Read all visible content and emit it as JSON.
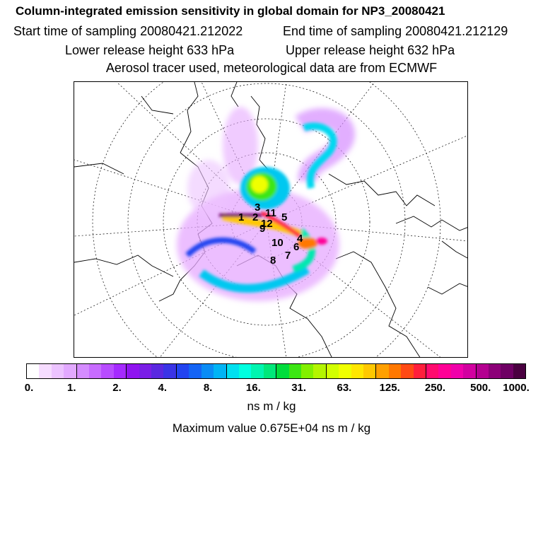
{
  "title": "Column-integrated emission sensitivity in global domain for NP3_20080421",
  "start_time": "Start time of sampling 20080421.212022",
  "end_time": "End time of sampling 20080421.212129",
  "lower_release": "Lower release height  633 hPa",
  "upper_release": "Upper release height  632 hPa",
  "info": "Aerosol tracer used, meteorological data are from ECMWF",
  "map_labels": [
    "1",
    "2",
    "3",
    "4",
    "5",
    "6",
    "7",
    "8",
    "9",
    "10",
    "11",
    "12"
  ],
  "colorbar": {
    "colors": [
      "#ffffff",
      "#f6dcff",
      "#ecc3ff",
      "#e2a9ff",
      "#d58cff",
      "#c86cff",
      "#b84cff",
      "#a52aff",
      "#8f14f0",
      "#7a1ee6",
      "#5a28e0",
      "#3a34e6",
      "#2244f0",
      "#1464f5",
      "#0a8cf5",
      "#00b4f5",
      "#00e0f0",
      "#00ffe0",
      "#00f5b0",
      "#00e87a",
      "#00dc3c",
      "#3ce614",
      "#82f000",
      "#b4f500",
      "#d2ff00",
      "#f0ff00",
      "#ffe600",
      "#ffc800",
      "#ffa000",
      "#ff7800",
      "#ff4a14",
      "#ff1e3c",
      "#ff0a6e",
      "#ff0096",
      "#f000aa",
      "#d200a0",
      "#b40090",
      "#8c0078",
      "#6e0064",
      "#4a0040"
    ],
    "tick_labels": [
      "0.",
      "1.",
      "2.",
      "4.",
      "8.",
      "16.",
      "31.",
      "63.",
      "125.",
      "250.",
      "500.",
      "1000."
    ]
  },
  "units": "ns m / kg",
  "max_value": "Maximum value  0.675E+04 ns m / kg"
}
